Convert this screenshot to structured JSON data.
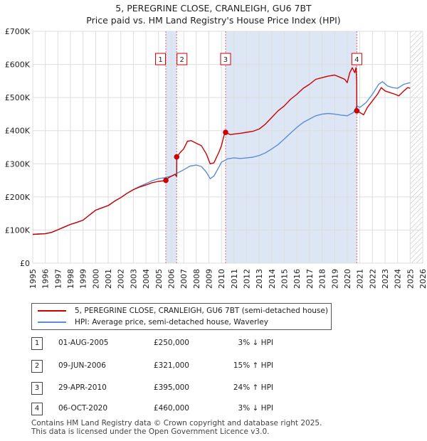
{
  "chart_data": {
    "type": "line",
    "title": "5, PEREGRINE CLOSE, CRANLEIGH, GU6 7BT",
    "subtitle": "Price paid vs. HM Land Registry's House Price Index (HPI)",
    "ylim": [
      0,
      700000
    ],
    "xlim": [
      1995,
      2026
    ],
    "y_ticks": [
      {
        "value": 0,
        "label": "£0"
      },
      {
        "value": 100000,
        "label": "£100K"
      },
      {
        "value": 200000,
        "label": "£200K"
      },
      {
        "value": 300000,
        "label": "£300K"
      },
      {
        "value": 400000,
        "label": "£400K"
      },
      {
        "value": 500000,
        "label": "£500K"
      },
      {
        "value": 600000,
        "label": "£600K"
      },
      {
        "value": 700000,
        "label": "£700K"
      }
    ],
    "x_ticks": [
      "1995",
      "1996",
      "1997",
      "1998",
      "1999",
      "2000",
      "2001",
      "2002",
      "2003",
      "2004",
      "2005",
      "2006",
      "2007",
      "2008",
      "2009",
      "2010",
      "2011",
      "2012",
      "2013",
      "2014",
      "2015",
      "2016",
      "2017",
      "2018",
      "2019",
      "2020",
      "2021",
      "2022",
      "2023",
      "2024",
      "2025",
      "2026"
    ],
    "grid": true,
    "hatched_future_from": 2025.0,
    "colors": {
      "property": "#cc0000",
      "hpi": "#5b8ed6",
      "marker": "#cc0000",
      "vline": "#e06666",
      "shade": "#dde6f5"
    },
    "series": [
      {
        "name": "5, PEREGRINE CLOSE, CRANLEIGH, GU6 7BT (semi-detached house)",
        "color": "#cc0000",
        "points": [
          [
            1995.0,
            87000
          ],
          [
            1995.5,
            88000
          ],
          [
            1996.0,
            89000
          ],
          [
            1996.5,
            93000
          ],
          [
            1997.0,
            101000
          ],
          [
            1997.5,
            109000
          ],
          [
            1998.0,
            117000
          ],
          [
            1998.5,
            123000
          ],
          [
            1999.0,
            130000
          ],
          [
            1999.5,
            145000
          ],
          [
            2000.0,
            160000
          ],
          [
            2000.5,
            167000
          ],
          [
            2001.0,
            174000
          ],
          [
            2001.5,
            187000
          ],
          [
            2002.0,
            198000
          ],
          [
            2002.5,
            211000
          ],
          [
            2003.0,
            222000
          ],
          [
            2003.5,
            230000
          ],
          [
            2004.0,
            236000
          ],
          [
            2004.5,
            243000
          ],
          [
            2005.0,
            247000
          ],
          [
            2005.5,
            249000
          ],
          [
            2005.58,
            250000
          ],
          [
            2005.8,
            258000
          ],
          [
            2006.1,
            264000
          ],
          [
            2006.3,
            268000
          ],
          [
            2006.44,
            262000
          ],
          [
            2006.45,
            321000
          ],
          [
            2006.7,
            333000
          ],
          [
            2007.0,
            345000
          ],
          [
            2007.3,
            368000
          ],
          [
            2007.6,
            370000
          ],
          [
            2008.0,
            362000
          ],
          [
            2008.4,
            355000
          ],
          [
            2008.8,
            330000
          ],
          [
            2009.1,
            300000
          ],
          [
            2009.4,
            303000
          ],
          [
            2009.8,
            335000
          ],
          [
            2010.0,
            355000
          ],
          [
            2010.2,
            385000
          ],
          [
            2010.33,
            395000
          ],
          [
            2010.7,
            388000
          ],
          [
            2011.0,
            390000
          ],
          [
            2011.5,
            392000
          ],
          [
            2012.0,
            395000
          ],
          [
            2012.5,
            398000
          ],
          [
            2013.0,
            405000
          ],
          [
            2013.5,
            420000
          ],
          [
            2014.0,
            440000
          ],
          [
            2014.5,
            460000
          ],
          [
            2015.0,
            475000
          ],
          [
            2015.5,
            495000
          ],
          [
            2016.0,
            510000
          ],
          [
            2016.5,
            528000
          ],
          [
            2017.0,
            540000
          ],
          [
            2017.5,
            555000
          ],
          [
            2018.0,
            560000
          ],
          [
            2018.5,
            565000
          ],
          [
            2019.0,
            568000
          ],
          [
            2019.5,
            560000
          ],
          [
            2019.8,
            555000
          ],
          [
            2020.0,
            545000
          ],
          [
            2020.2,
            575000
          ],
          [
            2020.4,
            590000
          ],
          [
            2020.6,
            575000
          ],
          [
            2020.7,
            590000
          ],
          [
            2020.75,
            548000
          ],
          [
            2020.76,
            460000
          ],
          [
            2021.0,
            455000
          ],
          [
            2021.3,
            448000
          ],
          [
            2021.6,
            470000
          ],
          [
            2022.0,
            490000
          ],
          [
            2022.4,
            510000
          ],
          [
            2022.7,
            530000
          ],
          [
            2023.0,
            520000
          ],
          [
            2023.4,
            515000
          ],
          [
            2023.8,
            510000
          ],
          [
            2024.1,
            505000
          ],
          [
            2024.5,
            520000
          ],
          [
            2024.8,
            530000
          ],
          [
            2025.0,
            528000
          ]
        ]
      },
      {
        "name": "HPI: Average price, semi-detached house, Waverley",
        "color": "#5b8ed6",
        "points": [
          [
            1995.0,
            87000
          ],
          [
            1995.5,
            88000
          ],
          [
            1996.0,
            89000
          ],
          [
            1996.5,
            93000
          ],
          [
            1997.0,
            101000
          ],
          [
            1997.5,
            109000
          ],
          [
            1998.0,
            117000
          ],
          [
            1998.5,
            123000
          ],
          [
            1999.0,
            130000
          ],
          [
            1999.5,
            145000
          ],
          [
            2000.0,
            160000
          ],
          [
            2000.5,
            167000
          ],
          [
            2001.0,
            174000
          ],
          [
            2001.5,
            187000
          ],
          [
            2002.0,
            198000
          ],
          [
            2002.5,
            211000
          ],
          [
            2003.0,
            222000
          ],
          [
            2003.5,
            232000
          ],
          [
            2004.0,
            240000
          ],
          [
            2004.5,
            249000
          ],
          [
            2005.0,
            255000
          ],
          [
            2005.5,
            258000
          ],
          [
            2006.0,
            263000
          ],
          [
            2006.5,
            272000
          ],
          [
            2007.0,
            282000
          ],
          [
            2007.5,
            293000
          ],
          [
            2008.0,
            296000
          ],
          [
            2008.4,
            292000
          ],
          [
            2008.8,
            275000
          ],
          [
            2009.1,
            255000
          ],
          [
            2009.4,
            263000
          ],
          [
            2009.8,
            290000
          ],
          [
            2010.0,
            305000
          ],
          [
            2010.5,
            315000
          ],
          [
            2011.0,
            318000
          ],
          [
            2011.5,
            316000
          ],
          [
            2012.0,
            318000
          ],
          [
            2012.5,
            320000
          ],
          [
            2013.0,
            325000
          ],
          [
            2013.5,
            333000
          ],
          [
            2014.0,
            345000
          ],
          [
            2014.5,
            358000
          ],
          [
            2015.0,
            375000
          ],
          [
            2015.5,
            393000
          ],
          [
            2016.0,
            410000
          ],
          [
            2016.5,
            425000
          ],
          [
            2017.0,
            435000
          ],
          [
            2017.5,
            445000
          ],
          [
            2018.0,
            450000
          ],
          [
            2018.5,
            452000
          ],
          [
            2019.0,
            450000
          ],
          [
            2019.5,
            447000
          ],
          [
            2020.0,
            445000
          ],
          [
            2020.5,
            455000
          ],
          [
            2020.76,
            475000
          ],
          [
            2021.0,
            470000
          ],
          [
            2021.5,
            485000
          ],
          [
            2022.0,
            510000
          ],
          [
            2022.5,
            540000
          ],
          [
            2022.8,
            548000
          ],
          [
            2023.2,
            535000
          ],
          [
            2023.6,
            530000
          ],
          [
            2024.0,
            528000
          ],
          [
            2024.5,
            540000
          ],
          [
            2025.0,
            545000
          ]
        ]
      }
    ],
    "transactions": [
      {
        "num": "1",
        "x": 2005.58,
        "price": 250000,
        "date": "01-AUG-2005",
        "price_label": "£250,000",
        "hpi": "3% ↓ HPI"
      },
      {
        "num": "2",
        "x": 2006.44,
        "price": 321000,
        "date": "09-JUN-2006",
        "price_label": "£321,000",
        "hpi": "15% ↑ HPI"
      },
      {
        "num": "3",
        "x": 2010.33,
        "price": 395000,
        "date": "29-APR-2010",
        "price_label": "£395,000",
        "hpi": "24% ↑ HPI"
      },
      {
        "num": "4",
        "x": 2020.76,
        "price": 460000,
        "date": "06-OCT-2020",
        "price_label": "£460,000",
        "hpi": "3% ↓ HPI"
      }
    ]
  },
  "legend": {
    "property_label": "5, PEREGRINE CLOSE, CRANLEIGH, GU6 7BT (semi-detached house)",
    "hpi_label": "HPI: Average price, semi-detached house, Waverley"
  },
  "footer": {
    "line1": "Contains HM Land Registry data © Crown copyright and database right 2025.",
    "line2": "This data is licensed under the Open Government Licence v3.0."
  }
}
